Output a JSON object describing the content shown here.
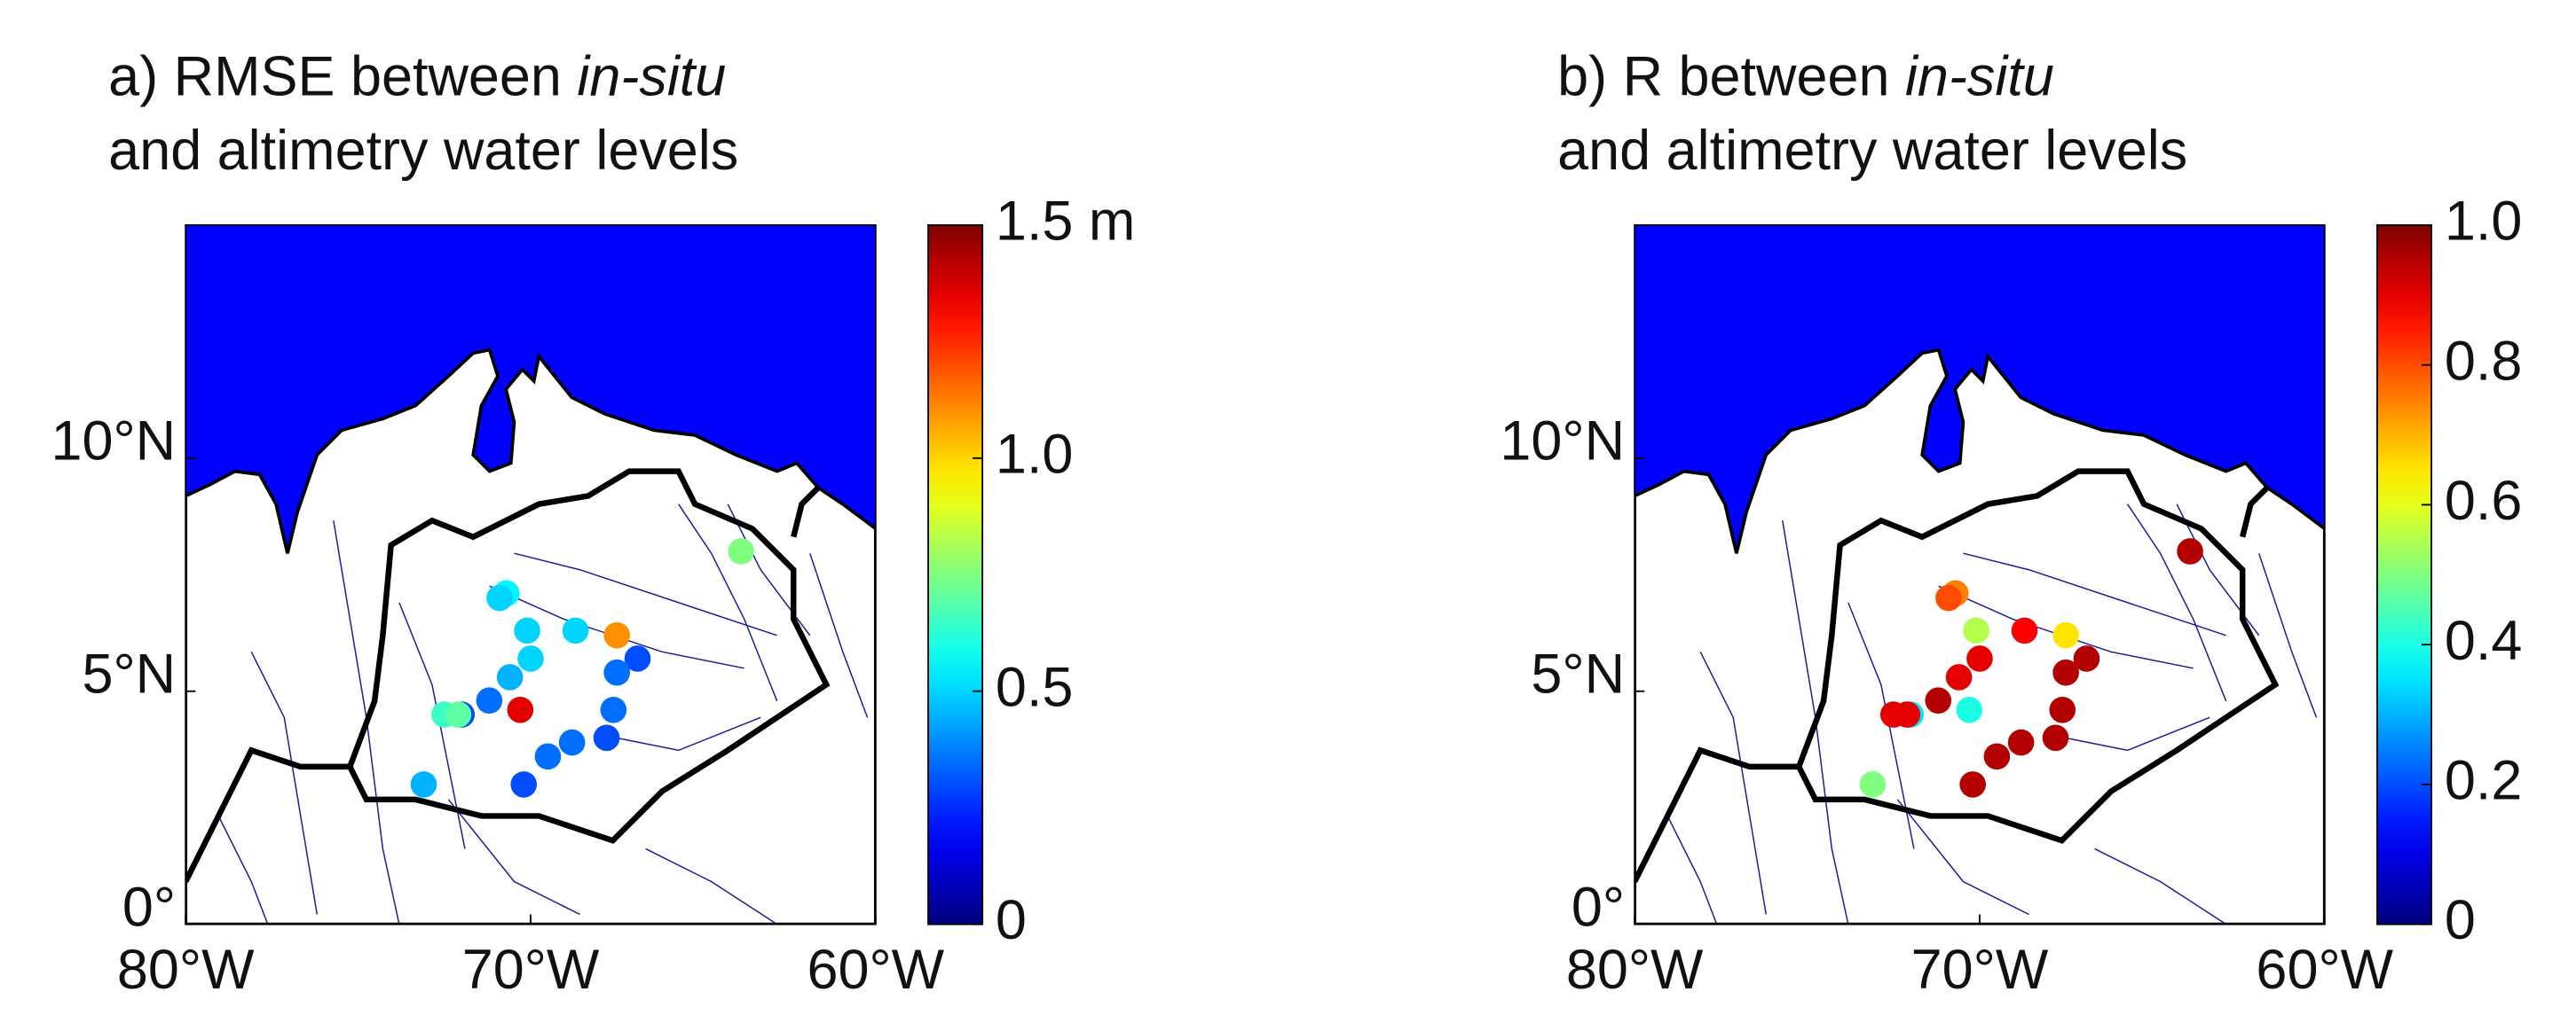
{
  "chart_data": [
    {
      "type": "scatter-map",
      "title": {
        "prefix": "a) RMSE between ",
        "emphasis": "in-situ",
        "line2": "and altimetry water levels"
      },
      "x": [
        -63.9,
        -70.7,
        -70.9,
        -70.1,
        -68.7,
        -67.5,
        -66.9,
        -67.5,
        -70.0,
        -70.6,
        -71.2,
        -72.0,
        -72.5,
        -72.1,
        -70.3,
        -67.6,
        -67.8,
        -68.8,
        -69.5,
        -70.2,
        -73.1
      ],
      "y": [
        8.0,
        7.1,
        7.0,
        6.3,
        6.3,
        6.2,
        5.7,
        5.4,
        5.7,
        5.3,
        4.8,
        4.5,
        4.5,
        4.5,
        4.6,
        4.6,
        4.0,
        3.9,
        3.6,
        3.0,
        3.0
      ],
      "values": [
        0.75,
        0.55,
        0.5,
        0.5,
        0.5,
        1.1,
        0.3,
        0.35,
        0.5,
        0.45,
        0.35,
        0.3,
        0.65,
        0.7,
        1.35,
        0.35,
        0.3,
        0.35,
        0.35,
        0.3,
        0.45
      ],
      "xlim": [
        -80,
        -60
      ],
      "ylim": [
        0,
        15
      ],
      "xticks": [
        {
          "value": -80,
          "label": "80°W"
        },
        {
          "value": -70,
          "label": "70°W"
        },
        {
          "value": -60,
          "label": "60°W"
        }
      ],
      "yticks": [
        {
          "value": 0,
          "label": "0°"
        },
        {
          "value": 5,
          "label": "5°N"
        },
        {
          "value": 10,
          "label": "10°N"
        }
      ],
      "colormap": "jet",
      "clim": [
        0,
        1.5
      ],
      "cticks": [
        0,
        0.5,
        {
          "value": 1.0,
          "label": "1.0"
        },
        {
          "value": 1.5,
          "label": "1.5 m"
        }
      ]
    },
    {
      "type": "scatter-map",
      "title": {
        "prefix": "b) R between ",
        "emphasis": "in-situ",
        "line2": "and altimetry water levels"
      },
      "x": [
        -63.9,
        -70.7,
        -70.9,
        -70.1,
        -68.7,
        -67.5,
        -66.9,
        -67.5,
        -70.0,
        -70.6,
        -71.2,
        -72.0,
        -72.5,
        -72.1,
        -70.3,
        -67.6,
        -67.8,
        -68.8,
        -69.5,
        -70.2,
        -73.1
      ],
      "y": [
        8.0,
        7.1,
        7.0,
        6.3,
        6.3,
        6.2,
        5.7,
        5.4,
        5.7,
        5.3,
        4.8,
        4.5,
        4.5,
        4.5,
        4.6,
        4.6,
        4.0,
        3.9,
        3.6,
        3.0,
        3.0
      ],
      "values": [
        0.95,
        0.75,
        0.8,
        0.55,
        0.88,
        0.65,
        0.95,
        0.95,
        0.9,
        0.9,
        0.95,
        0.35,
        0.9,
        0.9,
        0.4,
        0.95,
        0.95,
        0.95,
        0.95,
        0.95,
        0.5
      ],
      "xlim": [
        -80,
        -60
      ],
      "ylim": [
        0,
        15
      ],
      "xticks": [
        {
          "value": -80,
          "label": "80°W"
        },
        {
          "value": -70,
          "label": "70°W"
        },
        {
          "value": -60,
          "label": "60°W"
        }
      ],
      "yticks": [
        {
          "value": 0,
          "label": "0°"
        },
        {
          "value": 5,
          "label": "5°N"
        },
        {
          "value": 10,
          "label": "10°N"
        }
      ],
      "colormap": "jet",
      "clim": [
        0,
        1
      ],
      "cticks": [
        0,
        0.2,
        0.4,
        0.6,
        0.8,
        {
          "value": 1.0,
          "label": "1.0"
        }
      ]
    }
  ]
}
